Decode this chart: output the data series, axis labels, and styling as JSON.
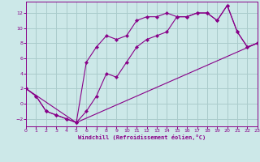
{
  "xlabel": "Windchill (Refroidissement éolien,°C)",
  "bg_color": "#cce8e8",
  "line_color": "#880088",
  "grid_color": "#aacccc",
  "xlim": [
    0,
    23
  ],
  "ylim": [
    -3,
    13.5
  ],
  "xticks": [
    0,
    1,
    2,
    3,
    4,
    5,
    6,
    7,
    8,
    9,
    10,
    11,
    12,
    13,
    14,
    15,
    16,
    17,
    18,
    19,
    20,
    21,
    22,
    23
  ],
  "yticks": [
    -2,
    0,
    2,
    4,
    6,
    8,
    10,
    12
  ],
  "line1_x": [
    0,
    1,
    2,
    3,
    4,
    5,
    6,
    7,
    8,
    9,
    10,
    11,
    12,
    13,
    14,
    15,
    16,
    17,
    18,
    19,
    20,
    21,
    22,
    23
  ],
  "line1_y": [
    2,
    1,
    -1,
    -1.5,
    -2,
    -2.5,
    -1,
    1,
    4,
    3.5,
    5.5,
    7.5,
    8.5,
    9,
    9.5,
    11.5,
    11.5,
    12,
    12,
    11,
    13,
    9.5,
    7.5,
    8
  ],
  "line2_x": [
    0,
    1,
    2,
    3,
    4,
    5,
    6,
    7,
    8,
    9,
    10,
    11,
    12,
    13,
    14,
    15,
    16,
    17,
    18,
    19,
    20,
    21,
    22,
    23
  ],
  "line2_y": [
    2,
    1,
    -1,
    -1.5,
    -2,
    -2.5,
    5.5,
    7.5,
    9,
    8.5,
    9,
    11,
    11.5,
    11.5,
    12,
    11.5,
    11.5,
    12,
    12,
    11,
    13,
    9.5,
    7.5,
    8
  ],
  "line3_x": [
    0,
    5,
    23
  ],
  "line3_y": [
    2,
    -2.5,
    8
  ]
}
